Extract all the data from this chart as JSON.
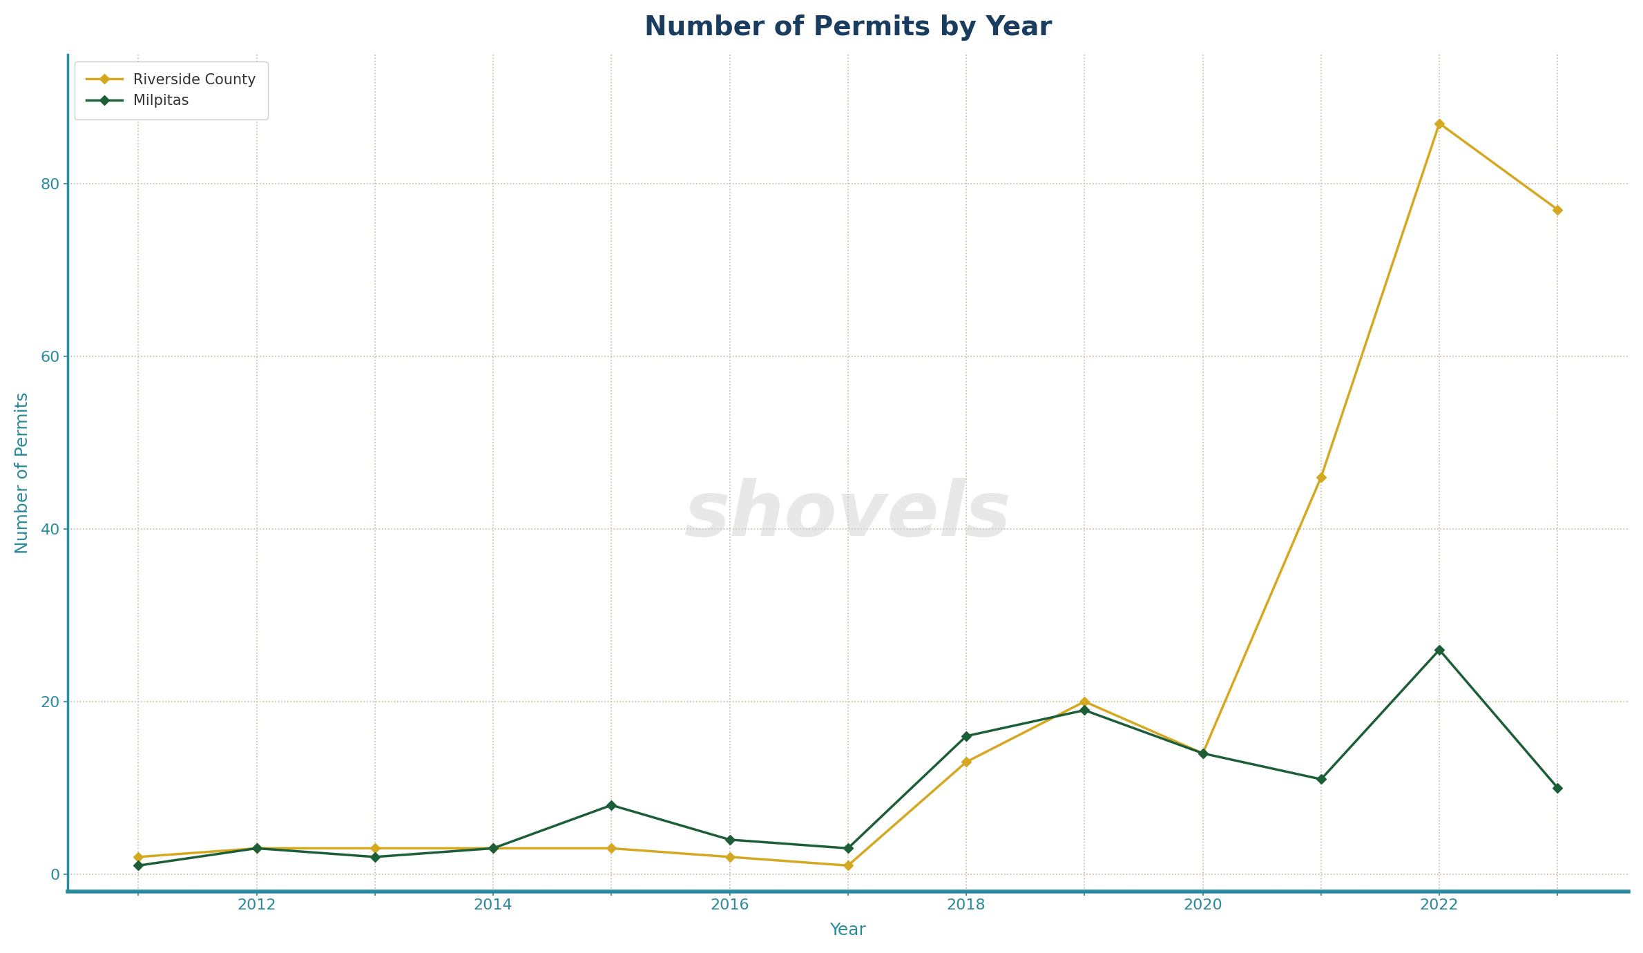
{
  "title": "Number of Permits by Year",
  "xlabel": "Year",
  "ylabel": "Number of Permits",
  "riverside_county": {
    "label": "Riverside County",
    "color": "#D4A820",
    "years": [
      2011,
      2012,
      2013,
      2014,
      2015,
      2016,
      2017,
      2018,
      2019,
      2020,
      2021,
      2022,
      2023
    ],
    "values": [
      2,
      3,
      3,
      3,
      3,
      2,
      1,
      13,
      20,
      14,
      46,
      87,
      77
    ]
  },
  "milpitas": {
    "label": "Milpitas",
    "color": "#1B5E38",
    "years": [
      2011,
      2012,
      2013,
      2014,
      2015,
      2016,
      2017,
      2018,
      2019,
      2020,
      2021,
      2022,
      2023
    ],
    "values": [
      1,
      3,
      2,
      3,
      8,
      4,
      3,
      16,
      19,
      14,
      11,
      26,
      10
    ]
  },
  "ylim": [
    -2,
    95
  ],
  "yticks": [
    0,
    20,
    40,
    60,
    80
  ],
  "xtick_labels": [
    "",
    "2012",
    "",
    "2014",
    "",
    "2016",
    "",
    "2018",
    "",
    "2020",
    "",
    "2022",
    ""
  ],
  "background_color": "#FFFFFF",
  "grid_color": "#C8B8A2",
  "spine_color": "#2B8A9C",
  "axis_label_color": "#2B8A9C",
  "title_color": "#1A3C5E",
  "title_fontsize": 28,
  "axis_label_fontsize": 18,
  "tick_fontsize": 16,
  "legend_fontsize": 15,
  "line_width": 2.5,
  "marker": "D",
  "marker_size": 7,
  "watermark_text": "shovels",
  "watermark_color": "#CCCCCC",
  "watermark_fontsize": 80,
  "watermark_alpha": 0.45
}
